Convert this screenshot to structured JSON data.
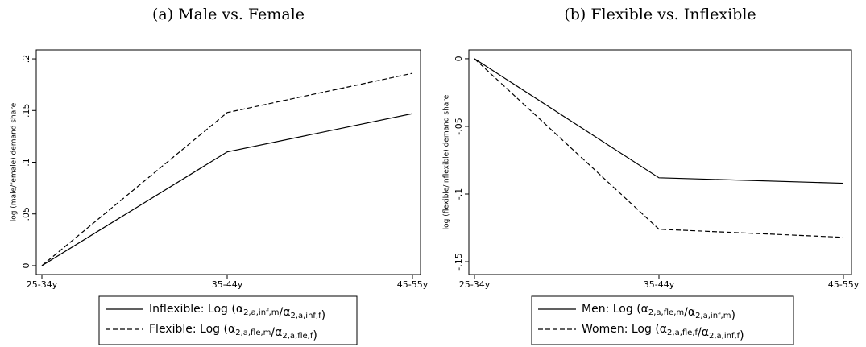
{
  "chart_data": [
    {
      "type": "line",
      "title": "(a) Male vs. Female",
      "y_label": "log (male/female) demand share",
      "categories": [
        "25-34y",
        "35-44y",
        "45-55y"
      ],
      "series": [
        {
          "name": "Inflexible: Log (α2,a,inf,m/α2,a,inf,f)",
          "color": "#000000",
          "dash": false,
          "values": [
            0,
            0.11,
            0.147
          ]
        },
        {
          "name": "Flexible: Log (α2,a,fle,m/α2,a,fle,f)",
          "color": "#000000",
          "dash": true,
          "values": [
            0,
            0.148,
            0.186
          ]
        }
      ],
      "ylim": [
        -0.0086,
        0.2086
      ],
      "yticks": [
        {
          "value": 0,
          "label": "0"
        },
        {
          "value": 0.05,
          "label": ".05"
        },
        {
          "value": 0.1,
          "label": ".1"
        },
        {
          "value": 0.15,
          "label": ".15"
        },
        {
          "value": 0.2,
          "label": ".2"
        }
      ]
    },
    {
      "type": "line",
      "title": "(b) Flexible vs. Inflexible",
      "y_label": "log (flexible/inflexible) demand share",
      "categories": [
        "25-34y",
        "35-44y",
        "45-55y"
      ],
      "series": [
        {
          "name": "Men: Log (α2,a,fle,m/α2,a,inf,m)",
          "color": "#000000",
          "dash": false,
          "values": [
            0,
            -0.088,
            -0.092
          ]
        },
        {
          "name": "Women: Log (α2,a,fle,f/α2,a,inf,f)",
          "color": "#000000",
          "dash": true,
          "values": [
            0,
            -0.126,
            -0.132
          ]
        }
      ],
      "ylim": [
        -0.1595,
        0.0065
      ],
      "yticks": [
        {
          "value": 0,
          "label": "0"
        },
        {
          "value": -0.05,
          "label": "-.05"
        },
        {
          "value": -0.1,
          "label": "-.1"
        },
        {
          "value": -0.15,
          "label": "-.15"
        }
      ]
    }
  ]
}
